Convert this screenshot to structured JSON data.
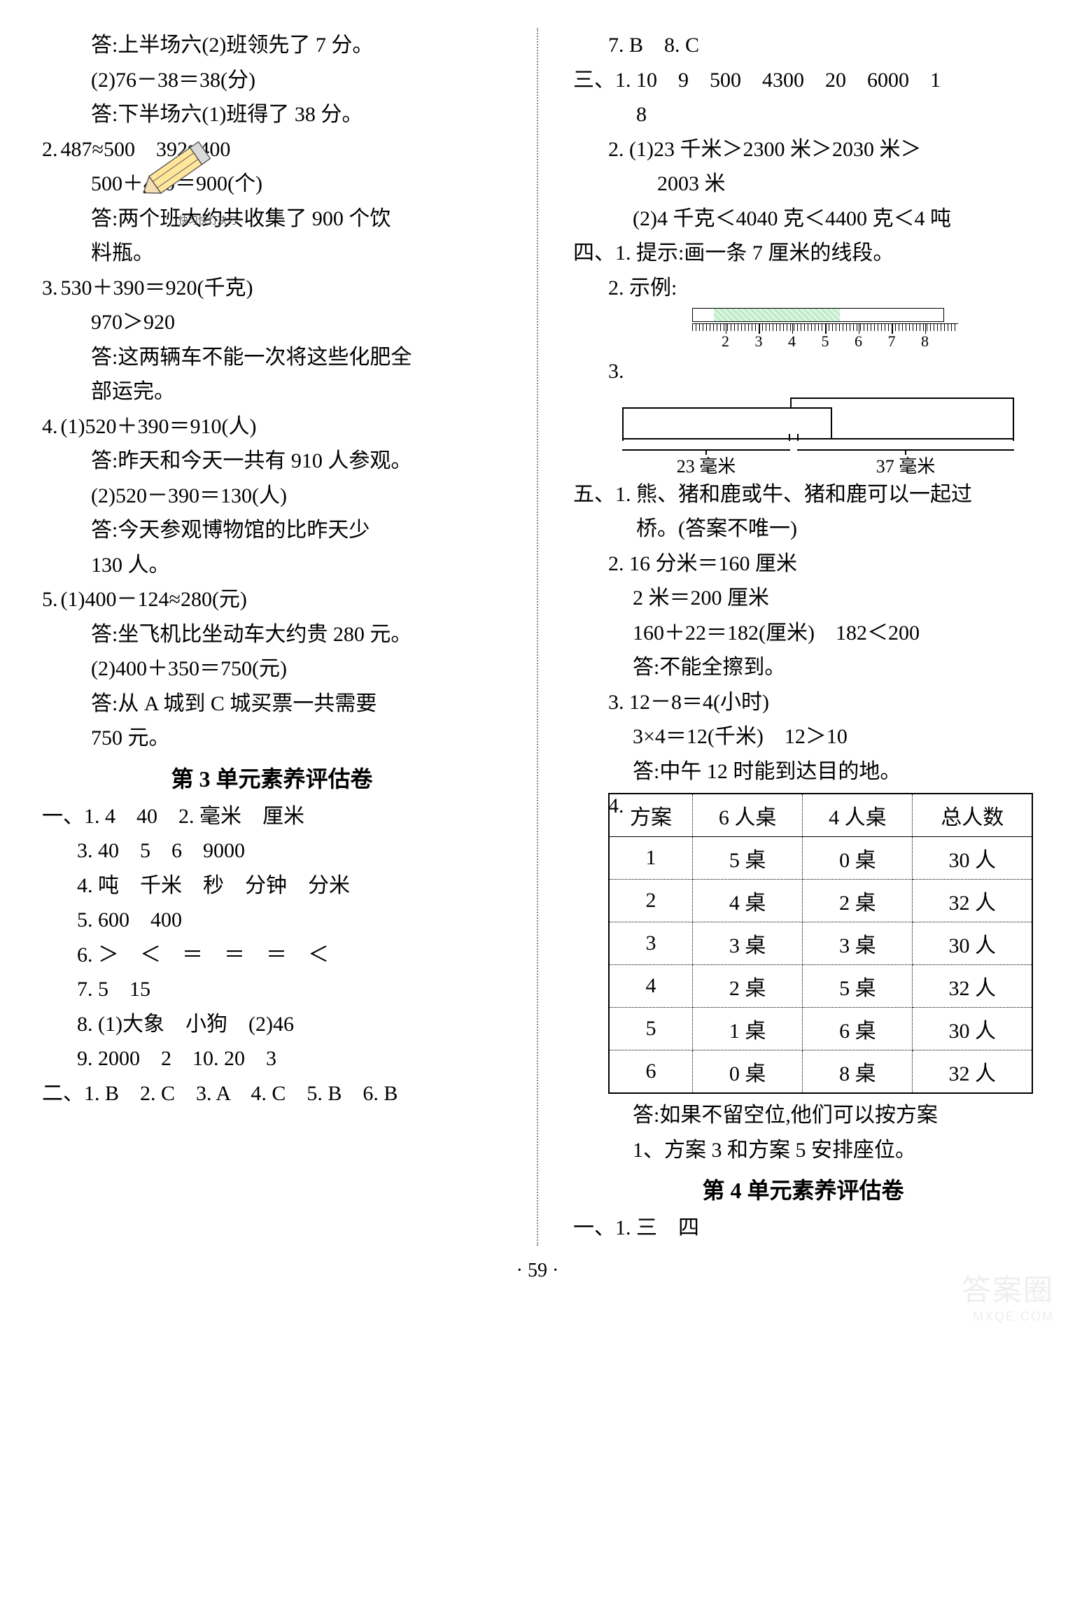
{
  "page_number": "· 59 ·",
  "watermark": {
    "main": "答案圈",
    "url": "MXQE.COM"
  },
  "left": {
    "l01": "答:上半场六(2)班领先了 7 分。",
    "l02": "(2)76－38＝38(分)",
    "l03": "答:下半场六(1)班得了 38 分。",
    "l04_num": "2.",
    "l04": "487≈500　392≈400",
    "l05": "500＋400＝900(个)",
    "l06": "答:两个班大约共收集了 900 个饮",
    "l07": "料瓶。",
    "l08_num": "3.",
    "l08": "530＋390＝920(千克)",
    "l09": "970＞920",
    "l10": "答:这两辆车不能一次将这些化肥全",
    "l11": "部运完。",
    "l12_num": "4.",
    "l12": "(1)520＋390＝910(人)",
    "l13": "答:昨天和今天一共有 910 人参观。",
    "l14": "(2)520－390＝130(人)",
    "l15": "答:今天参观博物馆的比昨天少",
    "l16": "130 人。",
    "l17_num": "5.",
    "l17": "(1)400－124≈280(元)",
    "l18": "答:坐飞机比坐动车大约贵 280 元。",
    "l19": "(2)400＋350＝750(元)",
    "l20": "答:从 A 城到 C 城买票一共需要",
    "l21": "750 元。",
    "title1": "第 3 单元素养评估卷",
    "s1_01": "一、1. 4　40　2. 毫米　厘米",
    "s1_02": "3. 40　5　6　9000",
    "s1_03": "4. 吨　千米　秒　分钟　分米",
    "s1_04": "5. 600　400",
    "s1_05": "6. ＞　＜　＝　＝　＝　＜",
    "s1_06": "7. 5　15",
    "s1_07": "8. (1)大象　小狗　(2)46",
    "s1_08": "9. 2000　2　10. 20　3",
    "s2_01": "二、1. B　2. C　3. A　4. C　5. B　6. B"
  },
  "right": {
    "r00": "7. B　8. C",
    "r01": "三、1. 10　9　500　4300　20　6000　1",
    "r01b": "8",
    "r02": "2. (1)23 千米＞2300 米＞2030 米＞",
    "r02b": "2003 米",
    "r03": "(2)4 千克＜4040 克＜4400 克＜4 吨",
    "r04": "四、1. 提示:画一条 7 厘米的线段。",
    "r05": "2. 示例:",
    "ruler_ticks": [
      "2",
      "3",
      "4",
      "5",
      "6",
      "7",
      "8"
    ],
    "r06": "3.",
    "dim1": "23 毫米",
    "dim2": "37 毫米",
    "r07": "五、1. 熊、猪和鹿或牛、猪和鹿可以一起过",
    "r07b": "桥。(答案不唯一)",
    "r08": "2. 16 分米＝160 厘米",
    "r09": "2 米＝200 厘米",
    "r10": "160＋22＝182(厘米)　182＜200",
    "r11": "答:不能全擦到。",
    "r12": "3. 12－8＝4(小时)",
    "r13": "3×4＝12(千米)　12＞10",
    "r14": "答:中午 12 时能到达目的地。",
    "table_num": "4.",
    "table": {
      "headers": [
        "方案",
        "6 人桌",
        "4 人桌",
        "总人数"
      ],
      "rows": [
        [
          "1",
          "5 桌",
          "0 桌",
          "30 人"
        ],
        [
          "2",
          "4 桌",
          "2 桌",
          "32 人"
        ],
        [
          "3",
          "3 桌",
          "3 桌",
          "30 人"
        ],
        [
          "4",
          "2 桌",
          "5 桌",
          "32 人"
        ],
        [
          "5",
          "1 桌",
          "6 桌",
          "30 人"
        ],
        [
          "6",
          "0 桌",
          "8 桌",
          "32 人"
        ]
      ]
    },
    "r15": "答:如果不留空位,他们可以按方案",
    "r16": "1、方案 3 和方案 5 安排座位。",
    "title2": "第 4 单元素养评估卷",
    "r17": "一、1. 三　四"
  },
  "pencil_text": "快习快灯决刁"
}
